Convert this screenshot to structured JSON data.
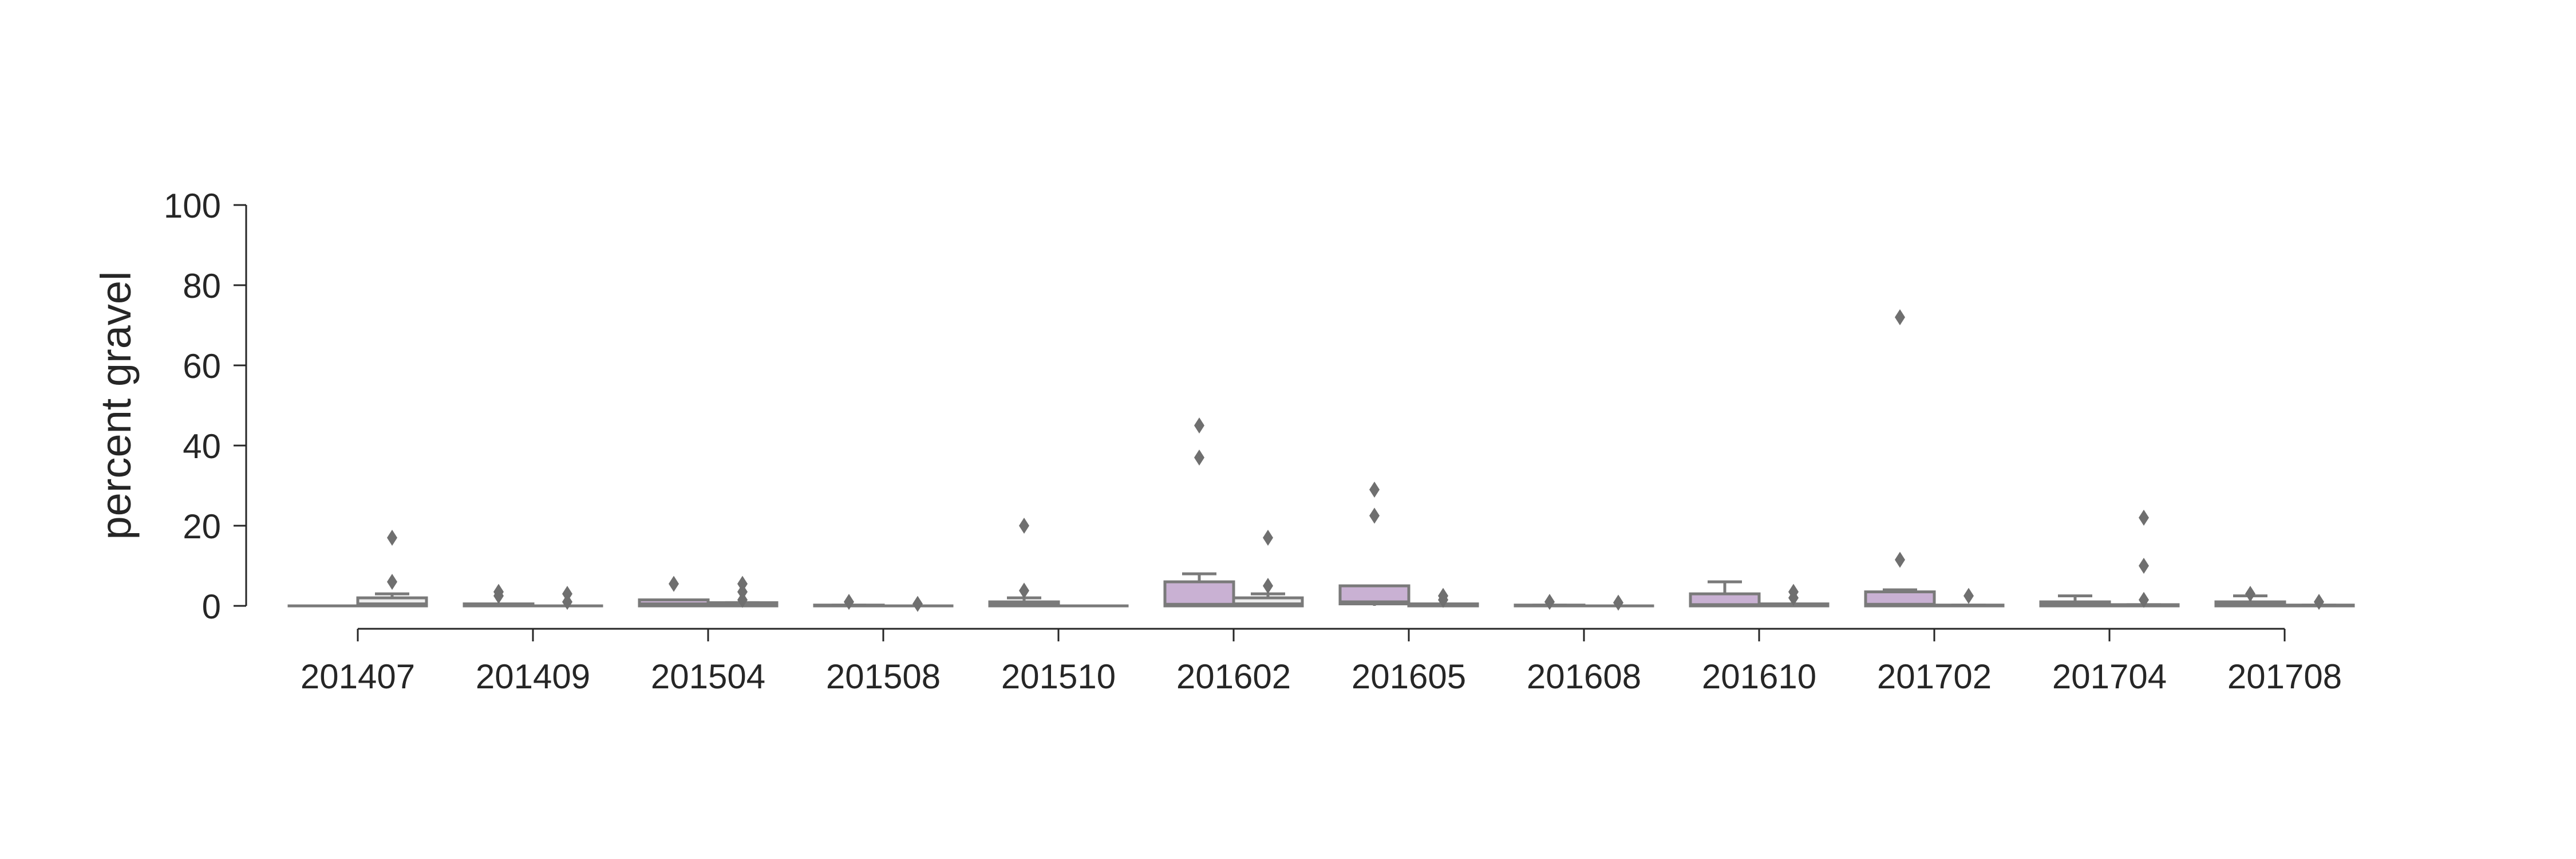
{
  "chart_data": {
    "type": "box",
    "title": "",
    "xlabel": "",
    "ylabel": "percent gravel",
    "ylim": [
      0,
      100
    ],
    "yticks": [
      0,
      20,
      40,
      60,
      80,
      100
    ],
    "categories": [
      "201407",
      "201409",
      "201504",
      "201508",
      "201510",
      "201602",
      "201605",
      "201608",
      "201610",
      "201702",
      "201704",
      "201708"
    ],
    "grid": false,
    "legend": "none",
    "series": [
      {
        "color": "#c9b1d3",
        "boxes": [
          {
            "whisker_low": 0,
            "q1": 0,
            "median": 0,
            "q3": 0,
            "whisker_high": 0,
            "outliers": []
          },
          {
            "whisker_low": 0,
            "q1": 0,
            "median": 0,
            "q3": 0.5,
            "whisker_high": 0.5,
            "outliers": [
              2.5,
              3.5
            ]
          },
          {
            "whisker_low": 0,
            "q1": 0,
            "median": 0.5,
            "q3": 1.5,
            "whisker_high": 1.5,
            "outliers": [
              5.5
            ]
          },
          {
            "whisker_low": 0,
            "q1": 0,
            "median": 0,
            "q3": 0.2,
            "whisker_high": 0.2,
            "outliers": [
              1
            ]
          },
          {
            "whisker_low": 0,
            "q1": 0,
            "median": 0.4,
            "q3": 1,
            "whisker_high": 2,
            "outliers": [
              3.8,
              20
            ]
          },
          {
            "whisker_low": 0,
            "q1": 0,
            "median": 0.4,
            "q3": 6,
            "whisker_high": 8,
            "outliers": [
              37,
              45
            ]
          },
          {
            "whisker_low": 0,
            "q1": 0.5,
            "median": 1,
            "q3": 5,
            "whisker_high": 5,
            "outliers": [
              22.5,
              29
            ]
          },
          {
            "whisker_low": 0,
            "q1": 0,
            "median": 0,
            "q3": 0.2,
            "whisker_high": 0.2,
            "outliers": [
              1
            ]
          },
          {
            "whisker_low": 0,
            "q1": 0,
            "median": 0.3,
            "q3": 3,
            "whisker_high": 6,
            "outliers": []
          },
          {
            "whisker_low": 0,
            "q1": 0,
            "median": 0.4,
            "q3": 3.5,
            "whisker_high": 4,
            "outliers": [
              11.5,
              72
            ]
          },
          {
            "whisker_low": 0,
            "q1": 0,
            "median": 0.5,
            "q3": 1,
            "whisker_high": 2.5,
            "outliers": []
          },
          {
            "whisker_low": 0,
            "q1": 0,
            "median": 0.5,
            "q3": 1,
            "whisker_high": 2.5,
            "outliers": [
              3
            ]
          }
        ]
      },
      {
        "color": "#ededed",
        "boxes": [
          {
            "whisker_low": 0,
            "q1": 0,
            "median": 0.5,
            "q3": 2,
            "whisker_high": 3,
            "outliers": [
              6,
              17
            ]
          },
          {
            "whisker_low": 0,
            "q1": 0,
            "median": 0,
            "q3": 0,
            "whisker_high": 0,
            "outliers": [
              1,
              3
            ]
          },
          {
            "whisker_low": 0,
            "q1": 0,
            "median": 0.2,
            "q3": 0.8,
            "whisker_high": 0.8,
            "outliers": [
              1.5,
              3.5,
              5.5
            ]
          },
          {
            "whisker_low": 0,
            "q1": 0,
            "median": 0,
            "q3": 0,
            "whisker_high": 0,
            "outliers": [
              0.5
            ]
          },
          {
            "whisker_low": 0,
            "q1": 0,
            "median": 0,
            "q3": 0,
            "whisker_high": 0,
            "outliers": []
          },
          {
            "whisker_low": 0,
            "q1": 0,
            "median": 0.5,
            "q3": 2,
            "whisker_high": 3,
            "outliers": [
              5,
              17
            ]
          },
          {
            "whisker_low": 0,
            "q1": 0,
            "median": 0,
            "q3": 0.5,
            "whisker_high": 0.5,
            "outliers": [
              1.5,
              2.5
            ]
          },
          {
            "whisker_low": 0,
            "q1": 0,
            "median": 0,
            "q3": 0,
            "whisker_high": 0,
            "outliers": [
              0.8
            ]
          },
          {
            "whisker_low": 0,
            "q1": 0,
            "median": 0,
            "q3": 0.5,
            "whisker_high": 0.5,
            "outliers": [
              2,
              3.5
            ]
          },
          {
            "whisker_low": 0,
            "q1": 0,
            "median": 0,
            "q3": 0.2,
            "whisker_high": 0.2,
            "outliers": [
              2.5
            ]
          },
          {
            "whisker_low": 0,
            "q1": 0,
            "median": 0,
            "q3": 0.3,
            "whisker_high": 0.3,
            "outliers": [
              1.5,
              10,
              22
            ]
          },
          {
            "whisker_low": 0,
            "q1": 0,
            "median": 0,
            "q3": 0.2,
            "whisker_high": 0.2,
            "outliers": [
              1
            ]
          }
        ]
      }
    ]
  }
}
